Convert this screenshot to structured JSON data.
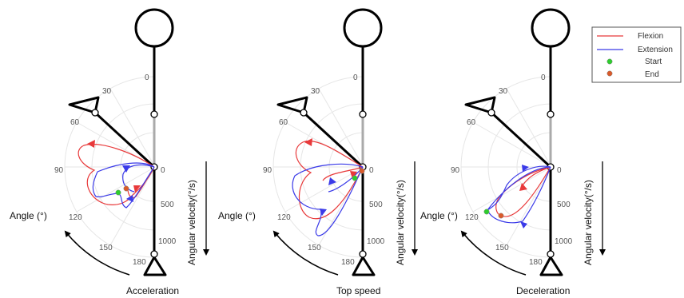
{
  "panels": [
    {
      "id": "acceleration",
      "caption": "Acceleration",
      "angle_ticks": [
        "0",
        "30",
        "60",
        "90",
        "120",
        "150",
        "180"
      ],
      "velocity_ticks": [
        "0",
        "500",
        "1000"
      ],
      "angle_label": "Angle (°)",
      "velocity_label": "Angular velocity(°/s)"
    },
    {
      "id": "top-speed",
      "caption": "Top speed",
      "angle_ticks": [
        "0",
        "30",
        "60",
        "90",
        "120",
        "150",
        "180"
      ],
      "velocity_ticks": [
        "0",
        "500",
        "1000"
      ],
      "angle_label": "Angle (°)",
      "velocity_label": "Angular velocity(°/s)"
    },
    {
      "id": "deceleration",
      "caption": "Deceleration",
      "angle_ticks": [
        "0",
        "30",
        "60",
        "90",
        "120",
        "150",
        "180"
      ],
      "velocity_ticks": [
        "0",
        "500",
        "1000"
      ],
      "angle_label": "Angle (°)",
      "velocity_label": "Angular velocity(°/s)"
    }
  ],
  "legend": {
    "flexion": "Flexion",
    "extension": "Extension",
    "start": "Start",
    "end": "End"
  },
  "colors": {
    "flexion": "#e8393a",
    "extension": "#3a3ae8",
    "start": "#2ecc2e",
    "end": "#d95a2a",
    "limb": "#000000",
    "limb_shank": "#aaaaaa",
    "grid": "#e6e6e6"
  }
}
